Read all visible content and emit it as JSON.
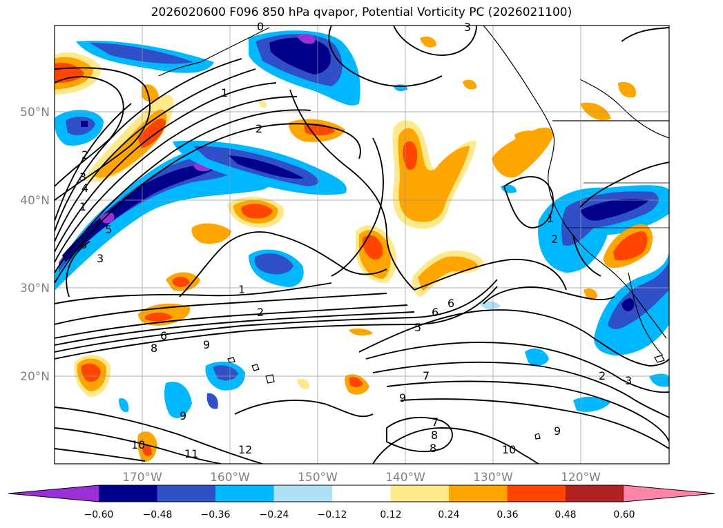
{
  "title": "2026020600 F096 850 hPa qvapor, Potential Vorticity PC (2026021100)",
  "map": {
    "lon_labels": [
      "170°W",
      "160°W",
      "150°W",
      "140°W",
      "130°W",
      "120°W"
    ],
    "lat_labels": [
      "50°N",
      "40°N",
      "30°N",
      "20°N"
    ],
    "contour_labels": [
      "1",
      "2",
      "3",
      "4",
      "1",
      "5",
      "6",
      "3",
      "1",
      "2",
      "6",
      "8",
      "9",
      "5",
      "6",
      "6",
      "9",
      "7",
      "9",
      "7",
      "8",
      "8",
      "9",
      "10",
      "10",
      "11",
      "12",
      "2",
      "3",
      "2",
      "1",
      "2",
      "3",
      "0"
    ]
  },
  "colorbar": {
    "colors": [
      "#9b30d9",
      "#00008b",
      "#3050c8",
      "#00b8ff",
      "#aee0f8",
      "#ffffff",
      "#fde98a",
      "#ffa500",
      "#ff4500",
      "#b22222",
      "#ff85a8"
    ],
    "labels": [
      "−0.60",
      "−0.48",
      "−0.36",
      "−0.24",
      "−0.12",
      "0.12",
      "0.24",
      "0.36",
      "0.48",
      "0.60"
    ]
  }
}
